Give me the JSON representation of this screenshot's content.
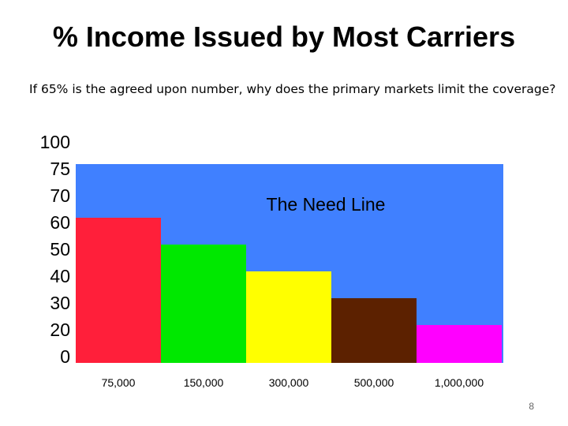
{
  "slide": {
    "title": "% Income Issued by Most Carriers",
    "subtitle": "If 65% is the agreed upon number, why does the primary markets limit the coverage?",
    "page_number": "8"
  },
  "chart_data": {
    "type": "bar",
    "title": "% Income Issued by Most Carriers",
    "xlabel": "",
    "ylabel": "",
    "y_tick_labels": [
      "100",
      "75",
      "70",
      "60",
      "50",
      "40",
      "30",
      "20",
      "0"
    ],
    "categories": [
      "75,000",
      "150,000",
      "300,000",
      "500,000",
      "1,000,000"
    ],
    "values": [
      60,
      50,
      40,
      30,
      20
    ],
    "bar_colors": [
      "#ff1f3a",
      "#00e800",
      "#ffff00",
      "#5c2100",
      "#ff00ff"
    ],
    "need_line": {
      "label": "The Need Line",
      "value": 75,
      "color": "#4080ff"
    },
    "grid": false,
    "legend": "none"
  }
}
